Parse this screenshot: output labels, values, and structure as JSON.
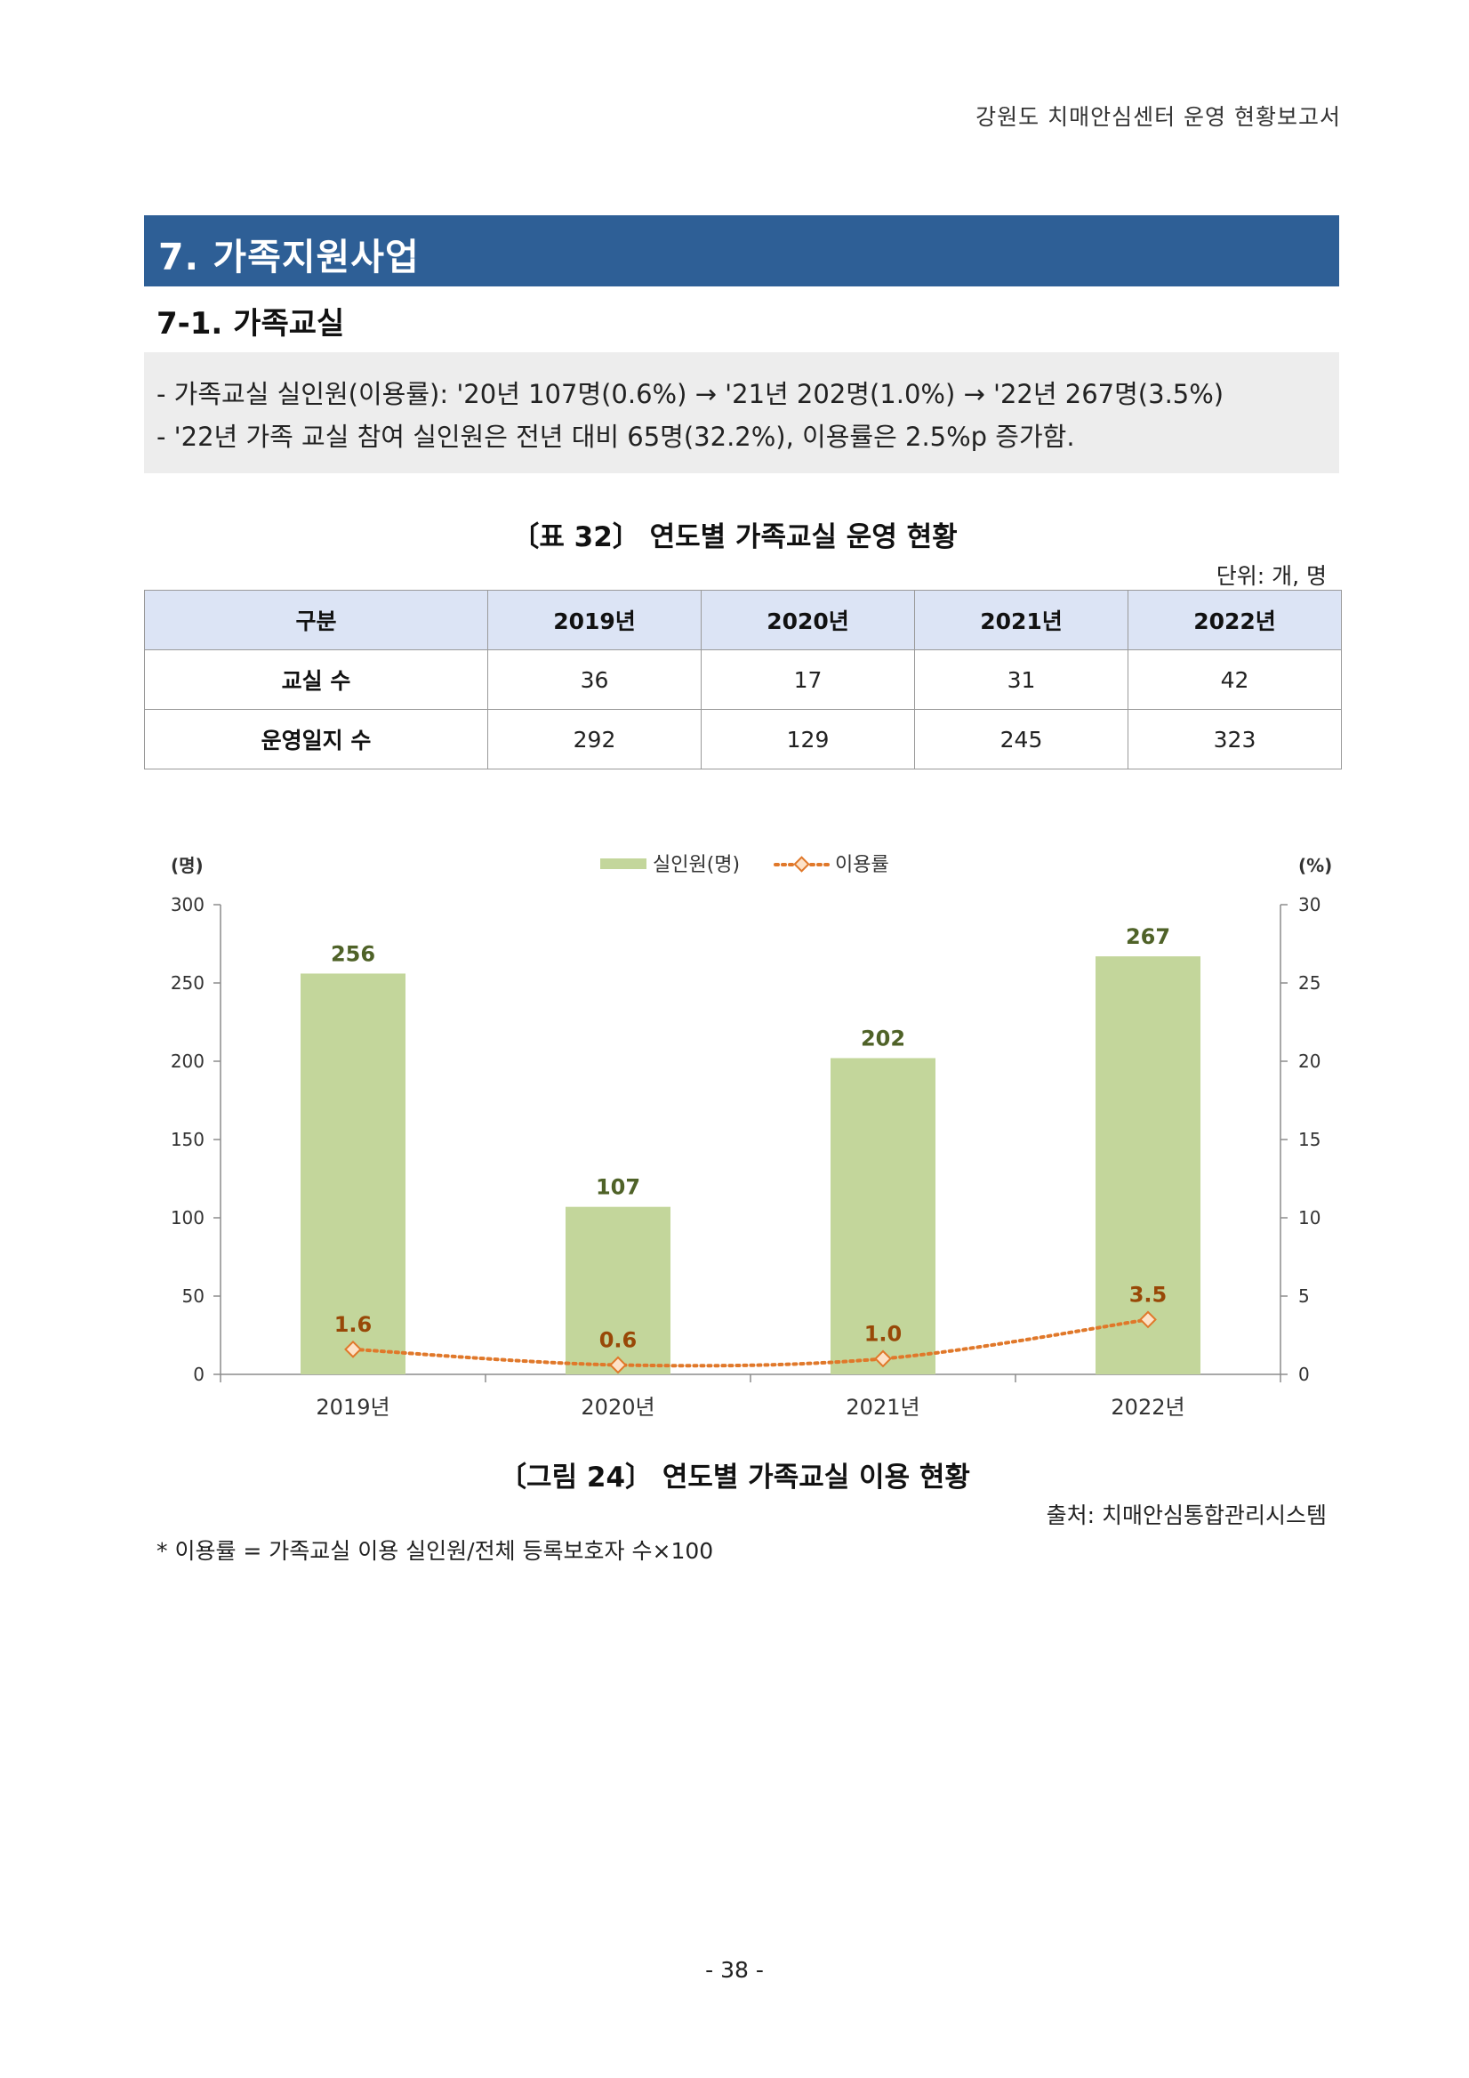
{
  "header": {
    "running_title": "강원도 치매안심센터 운영 현황보고서"
  },
  "section": {
    "title": "7. 가족지원사업",
    "subtitle": "7-1. 가족교실"
  },
  "summary": {
    "line1": "- 가족교실 실인원(이용률): '20년 107명(0.6%) → '21년 202명(1.0%) → '22년 267명(3.5%)",
    "line2": "- '22년 가족 교실 참여 실인원은 전년 대비 65명(32.2%), 이용률은 2.5%p 증가함."
  },
  "table": {
    "caption": "〔표 32〕 연도별 가족교실 운영 현황",
    "unit": "단위: 개, 명",
    "headers": [
      "구분",
      "2019년",
      "2020년",
      "2021년",
      "2022년"
    ],
    "rows": [
      [
        "교실 수",
        "36",
        "17",
        "31",
        "42"
      ],
      [
        "운영일지 수",
        "292",
        "129",
        "245",
        "323"
      ]
    ]
  },
  "chart_data": {
    "type": "bar",
    "categories": [
      "2019년",
      "2020년",
      "2021년",
      "2022년"
    ],
    "series": [
      {
        "name": "실인원(명)",
        "type": "bar",
        "axis": "left",
        "values": [
          256,
          107,
          202,
          267
        ],
        "labels": [
          "256",
          "107",
          "202",
          "267"
        ],
        "color": "#c3d69b"
      },
      {
        "name": "이용률",
        "type": "line",
        "axis": "right",
        "values": [
          1.6,
          0.6,
          1.0,
          3.5
        ],
        "labels": [
          "1.6",
          "0.6",
          "1.0",
          "3.5"
        ],
        "color": "#e0782a"
      }
    ],
    "y_left": {
      "label": "(명)",
      "ylim": [
        0,
        300
      ],
      "ticks": [
        "0",
        "50",
        "100",
        "150",
        "200",
        "250",
        "300"
      ]
    },
    "y_right": {
      "label": "(%)",
      "ylim": [
        0,
        30
      ],
      "ticks": [
        "0",
        "5",
        "10",
        "15",
        "20",
        "25",
        "30"
      ]
    },
    "legend": "top-center",
    "grid": false
  },
  "figure": {
    "caption": "〔그림 24〕 연도별 가족교실 이용 현황",
    "source": "출처: 치매안심통합관리시스템",
    "note": "* 이용률 = 가족교실 이용 실인원/전체 등록보호자 수×100"
  },
  "footer": {
    "page": "- 38 -"
  },
  "colors": {
    "section_bar": "#2e5f96",
    "table_header": "#dce4f5",
    "summary_bg": "#ededed",
    "bar": "#c3d69b",
    "line": "#e0782a",
    "bar_label": "#4f6228",
    "line_label": "#984807"
  }
}
